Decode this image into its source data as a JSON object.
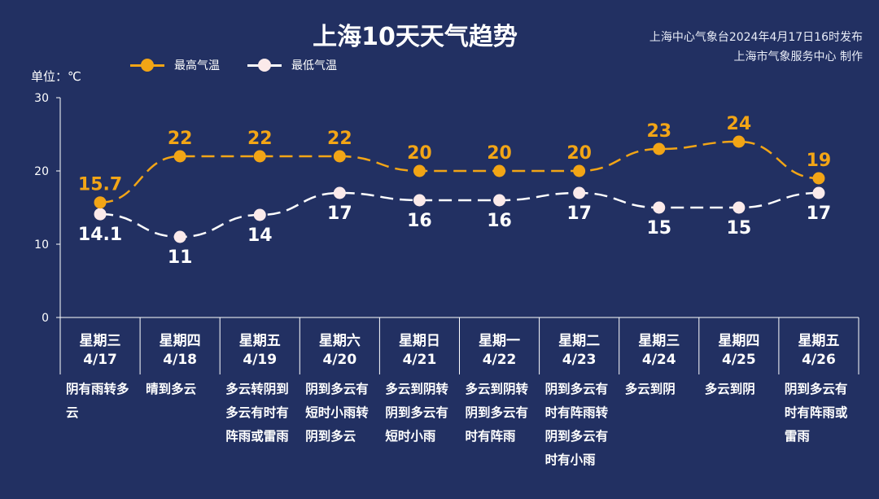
{
  "header": {
    "title": "上海10天天气趋势",
    "issuer_line1": "上海中心气象台2024年4月17日16时发布",
    "issuer_line2": "上海市气象服务中心 制作"
  },
  "legend": {
    "high_label": "最高气温",
    "low_label": "最低气温"
  },
  "unit_label": "单位：℃",
  "colors": {
    "background": "#223062",
    "high": "#f2a516",
    "low": "#ffffff"
  },
  "chart_data": {
    "type": "line",
    "ylim": [
      0,
      30
    ],
    "yticks": [
      0,
      10,
      20,
      30
    ],
    "ylabel": "单位：℃",
    "categories": [
      "4/17",
      "4/18",
      "4/19",
      "4/20",
      "4/21",
      "4/22",
      "4/23",
      "4/24",
      "4/25",
      "4/26"
    ],
    "series": [
      {
        "name": "最高气温",
        "values": [
          15.7,
          22,
          22,
          22,
          20,
          20,
          20,
          23,
          24,
          19
        ],
        "labels": [
          "15.7",
          "22",
          "22",
          "22",
          "20",
          "20",
          "20",
          "23",
          "24",
          "19"
        ]
      },
      {
        "name": "最低气温",
        "values": [
          14.1,
          11,
          14,
          17,
          16,
          16,
          17,
          15,
          15,
          17
        ],
        "labels": [
          "14.1",
          "11",
          "14",
          "17",
          "16",
          "16",
          "17",
          "15",
          "15",
          "17"
        ]
      }
    ]
  },
  "days": [
    {
      "weekday": "星期三",
      "date": "4/17",
      "weather": "阴有雨转多云"
    },
    {
      "weekday": "星期四",
      "date": "4/18",
      "weather": "晴到多云"
    },
    {
      "weekday": "星期五",
      "date": "4/19",
      "weather": "多云转阴到多云有时有阵雨或雷雨"
    },
    {
      "weekday": "星期六",
      "date": "4/20",
      "weather": "阴到多云有短时小雨转阴到多云"
    },
    {
      "weekday": "星期日",
      "date": "4/21",
      "weather": "多云到阴转阴到多云有短时小雨"
    },
    {
      "weekday": "星期一",
      "date": "4/22",
      "weather": "多云到阴转阴到多云有时有阵雨"
    },
    {
      "weekday": "星期二",
      "date": "4/23",
      "weather": "阴到多云有时有阵雨转阴到多云有时有小雨"
    },
    {
      "weekday": "星期三",
      "date": "4/24",
      "weather": "多云到阴"
    },
    {
      "weekday": "星期四",
      "date": "4/25",
      "weather": "多云到阴"
    },
    {
      "weekday": "星期五",
      "date": "4/26",
      "weather": "阴到多云有时有阵雨或雷雨"
    }
  ]
}
